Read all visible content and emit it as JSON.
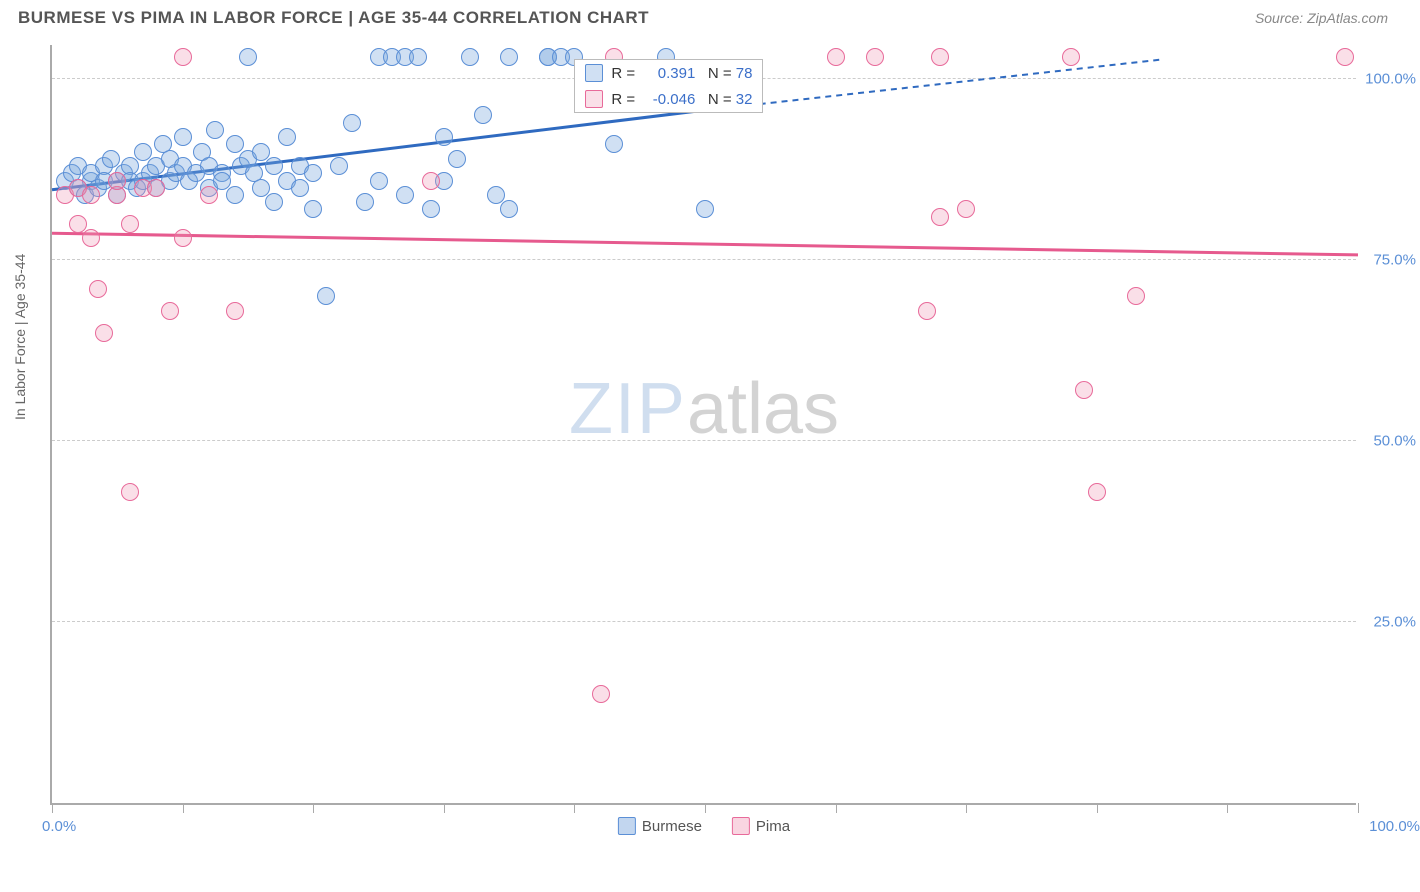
{
  "header": {
    "title": "BURMESE VS PIMA IN LABOR FORCE | AGE 35-44 CORRELATION CHART",
    "source": "Source: ZipAtlas.com"
  },
  "chart": {
    "type": "scatter",
    "ylabel": "In Labor Force | Age 35-44",
    "xlim": [
      0,
      100
    ],
    "ylim": [
      0,
      105
    ],
    "xticks": [
      0,
      10,
      20,
      30,
      40,
      50,
      60,
      70,
      80,
      90,
      100
    ],
    "yticks": [
      25,
      50,
      75,
      100
    ],
    "ytick_labels": [
      "25.0%",
      "50.0%",
      "75.0%",
      "100.0%"
    ],
    "x_min_label": "0.0%",
    "x_max_label": "100.0%",
    "background_color": "#ffffff",
    "grid_color": "#cccccc",
    "axis_color": "#aaaaaa",
    "tick_label_color": "#5b8fd6",
    "marker_radius": 9,
    "marker_border_width": 1.5,
    "watermark": {
      "zip": "ZIP",
      "atlas": "atlas"
    },
    "series": [
      {
        "name": "Burmese",
        "fill_color": "rgba(120,165,220,0.35)",
        "stroke_color": "#5b8fd6",
        "trend_color": "#2f6ac0",
        "trend_width": 3,
        "r_value": "0.391",
        "n_value": "78",
        "trend": {
          "x1": 0,
          "y1": 85,
          "x2": 50,
          "y2": 96
        },
        "trend_ext": {
          "x1": 50,
          "y1": 96,
          "x2": 85,
          "y2": 103
        },
        "points": [
          [
            1,
            86
          ],
          [
            1.5,
            87
          ],
          [
            2,
            85
          ],
          [
            2,
            88
          ],
          [
            2.5,
            84
          ],
          [
            3,
            86
          ],
          [
            3,
            87
          ],
          [
            3.5,
            85
          ],
          [
            4,
            88
          ],
          [
            4,
            86
          ],
          [
            4.5,
            89
          ],
          [
            5,
            86
          ],
          [
            5,
            84
          ],
          [
            5.5,
            87
          ],
          [
            6,
            88
          ],
          [
            6,
            86
          ],
          [
            6.5,
            85
          ],
          [
            7,
            90
          ],
          [
            7,
            86
          ],
          [
            7.5,
            87
          ],
          [
            8,
            88
          ],
          [
            8,
            85
          ],
          [
            8.5,
            91
          ],
          [
            9,
            86
          ],
          [
            9,
            89
          ],
          [
            9.5,
            87
          ],
          [
            10,
            88
          ],
          [
            10,
            92
          ],
          [
            10.5,
            86
          ],
          [
            11,
            87
          ],
          [
            11.5,
            90
          ],
          [
            12,
            85
          ],
          [
            12,
            88
          ],
          [
            12.5,
            93
          ],
          [
            13,
            87
          ],
          [
            13,
            86
          ],
          [
            14,
            91
          ],
          [
            14,
            84
          ],
          [
            14.5,
            88
          ],
          [
            15,
            89
          ],
          [
            15,
            103
          ],
          [
            15.5,
            87
          ],
          [
            16,
            85
          ],
          [
            16,
            90
          ],
          [
            17,
            88
          ],
          [
            17,
            83
          ],
          [
            18,
            86
          ],
          [
            18,
            92
          ],
          [
            19,
            88
          ],
          [
            19,
            85
          ],
          [
            20,
            87
          ],
          [
            20,
            82
          ],
          [
            21,
            70
          ],
          [
            22,
            88
          ],
          [
            23,
            94
          ],
          [
            24,
            83
          ],
          [
            25,
            86
          ],
          [
            25,
            103
          ],
          [
            26,
            103
          ],
          [
            27,
            84
          ],
          [
            27,
            103
          ],
          [
            28,
            103
          ],
          [
            29,
            82
          ],
          [
            30,
            92
          ],
          [
            30,
            86
          ],
          [
            31,
            89
          ],
          [
            32,
            103
          ],
          [
            33,
            95
          ],
          [
            34,
            84
          ],
          [
            35,
            103
          ],
          [
            35,
            82
          ],
          [
            38,
            103
          ],
          [
            38,
            103
          ],
          [
            39,
            103
          ],
          [
            40,
            103
          ],
          [
            43,
            91
          ],
          [
            47,
            103
          ],
          [
            50,
            82
          ]
        ]
      },
      {
        "name": "Pima",
        "fill_color": "rgba(240,150,180,0.30)",
        "stroke_color": "#e86a9a",
        "trend_color": "#e65a8e",
        "trend_width": 3,
        "r_value": "-0.046",
        "n_value": "32",
        "trend": {
          "x1": 0,
          "y1": 79,
          "x2": 100,
          "y2": 76
        },
        "points": [
          [
            1,
            84
          ],
          [
            2,
            85
          ],
          [
            2,
            80
          ],
          [
            3,
            84
          ],
          [
            3,
            78
          ],
          [
            3.5,
            71
          ],
          [
            4,
            65
          ],
          [
            5,
            84
          ],
          [
            5,
            86
          ],
          [
            6,
            80
          ],
          [
            6,
            43
          ],
          [
            7,
            85
          ],
          [
            8,
            85
          ],
          [
            9,
            68
          ],
          [
            10,
            78
          ],
          [
            10,
            103
          ],
          [
            12,
            84
          ],
          [
            14,
            68
          ],
          [
            29,
            86
          ],
          [
            42,
            15
          ],
          [
            43,
            103
          ],
          [
            60,
            103
          ],
          [
            63,
            103
          ],
          [
            67,
            68
          ],
          [
            68,
            81
          ],
          [
            68,
            103
          ],
          [
            70,
            82
          ],
          [
            78,
            103
          ],
          [
            79,
            57
          ],
          [
            80,
            43
          ],
          [
            83,
            70
          ],
          [
            99,
            103
          ]
        ]
      }
    ],
    "legend_stats": {
      "r_label": "R =",
      "n_label": "N ="
    },
    "bottom_legend": [
      {
        "label": "Burmese",
        "fill": "rgba(120,165,220,0.45)",
        "stroke": "#5b8fd6"
      },
      {
        "label": "Pima",
        "fill": "rgba(240,150,180,0.40)",
        "stroke": "#e86a9a"
      }
    ]
  }
}
